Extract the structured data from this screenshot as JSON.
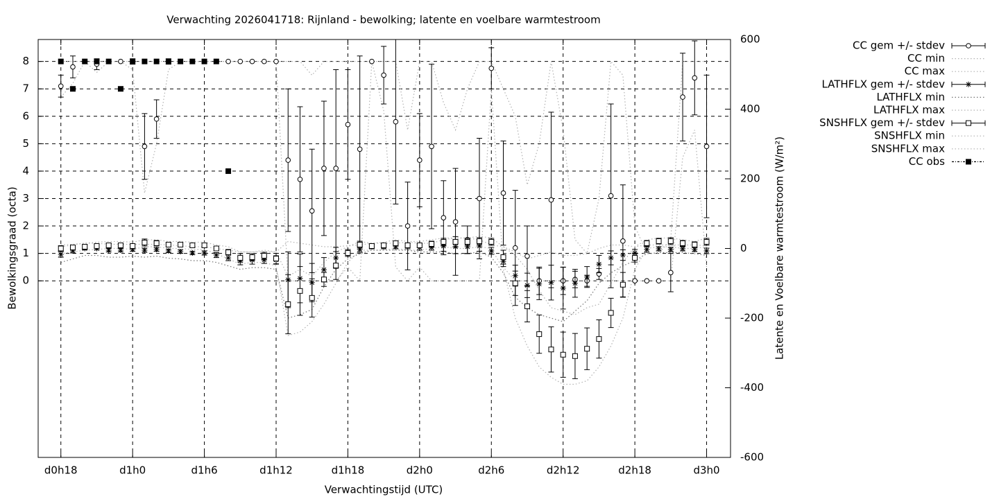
{
  "chart_data": {
    "type": "line",
    "title": "Verwachting 2026041718: Rijnland - bewolking; latente en voelbare warmtestroom",
    "x_label": "Verwachtingstijd (UTC)",
    "y_label": "Bewolkingsgraad (octa)",
    "y2_label": "Latente en Voelbare warmtestroom (W/m²)",
    "grid": true,
    "legend": "outside-right",
    "x": [
      18,
      19,
      20,
      21,
      22,
      23,
      24,
      25,
      26,
      27,
      28,
      29,
      30,
      31,
      32,
      33,
      34,
      35,
      36,
      37,
      38,
      39,
      40,
      41,
      42,
      43,
      44,
      45,
      46,
      47,
      48,
      49,
      50,
      51,
      52,
      53,
      54,
      55,
      56,
      57,
      58,
      59,
      60,
      61,
      62,
      63,
      64,
      65,
      66,
      67,
      68,
      69,
      70,
      71,
      72
    ],
    "xlim": [
      16.1,
      74
    ],
    "xticks": [
      {
        "value": 18,
        "label": "d0h18"
      },
      {
        "value": 24,
        "label": "d1h0"
      },
      {
        "value": 30,
        "label": "d1h6"
      },
      {
        "value": 36,
        "label": "d1h12"
      },
      {
        "value": 42,
        "label": "d1h18"
      },
      {
        "value": 48,
        "label": "d2h0"
      },
      {
        "value": 54,
        "label": "d2h6"
      },
      {
        "value": 60,
        "label": "d2h12"
      },
      {
        "value": 66,
        "label": "d2h18"
      },
      {
        "value": 72,
        "label": "d3h0"
      }
    ],
    "ylim": [
      -6.44,
      8.8
    ],
    "yticks": [
      0,
      1,
      2,
      3,
      4,
      5,
      6,
      7,
      8
    ],
    "y2lim": [
      -600,
      600
    ],
    "y2ticks": [
      -600,
      -400,
      -200,
      0,
      200,
      400,
      600
    ],
    "series": [
      {
        "name": "CC gem +/- stdev",
        "color": "#000000",
        "marker": "circle",
        "line": "none",
        "values": [
          7.1,
          7.8,
          8,
          7.9,
          8,
          8,
          8,
          4.9,
          5.9,
          8,
          8,
          8,
          8,
          8,
          8,
          8,
          8,
          8,
          8,
          4.4,
          3.7,
          2.55,
          4.1,
          4.1,
          5.7,
          4.8,
          8,
          7.5,
          5.8,
          2.0,
          4.4,
          4.9,
          2.3,
          2.15,
          1.5,
          3.0,
          7.75,
          3.2,
          1.2,
          0.9,
          0,
          2.95,
          0,
          0.05,
          0,
          0.25,
          3.1,
          1.45,
          0,
          0,
          0,
          0.3,
          6.7,
          7.4,
          4.9
        ],
        "errors": [
          0.4,
          0.4,
          0,
          0.2,
          0,
          0,
          0.1,
          1.2,
          0.7,
          0.1,
          0,
          0,
          0,
          0,
          0,
          0,
          0,
          0,
          0,
          2.6,
          2.65,
          2.25,
          2.45,
          3.6,
          2.0,
          3.4,
          0,
          1.05,
          3.0,
          1.6,
          1.7,
          3.0,
          1.35,
          1.95,
          0.5,
          2.2,
          0.75,
          1.9,
          2.1,
          1.1,
          0.5,
          3.2,
          0.5,
          0.3,
          0.2,
          0.2,
          3.35,
          2.05,
          0,
          0,
          0,
          0.7,
          1.6,
          1.35,
          2.6
        ]
      },
      {
        "name": "CC min",
        "color": "#b0b0b0",
        "marker": "none",
        "line": "dotted",
        "values": [
          6.7,
          7.2,
          8,
          7.6,
          8,
          8,
          7.7,
          3.2,
          5.0,
          7.7,
          8,
          8,
          8,
          8,
          8,
          8,
          8,
          8,
          8,
          0,
          0,
          0,
          0,
          0,
          0.5,
          0,
          8,
          6.2,
          0.5,
          0,
          0.5,
          0,
          0,
          0,
          0,
          0,
          7.0,
          0.5,
          0,
          0,
          0,
          0,
          0,
          0,
          0,
          0,
          0,
          0,
          0,
          0,
          0,
          0,
          4.5,
          5.5,
          0.5
        ]
      },
      {
        "name": "CC max",
        "color": "#b0b0b0",
        "marker": "none",
        "line": "dotted",
        "values": [
          8,
          8,
          8,
          8,
          8,
          8,
          8,
          8,
          8,
          8,
          8,
          8,
          8,
          8,
          8,
          8,
          8,
          8,
          8,
          8,
          8,
          7.5,
          8,
          8,
          8,
          8,
          8,
          8,
          8,
          5.5,
          8,
          8,
          6.5,
          5.5,
          7.0,
          8,
          8,
          7.0,
          6.0,
          3.5,
          5.0,
          8,
          5.5,
          1.5,
          1.0,
          3.0,
          8,
          7.5,
          2.0,
          1.0,
          1.0,
          1.5,
          8,
          8,
          8
        ]
      },
      {
        "name": "LATHFLX gem +/- stdev",
        "color": "#000000",
        "marker": "star",
        "line": "none",
        "axis": "y2",
        "values": [
          -17,
          -7,
          0,
          0,
          -5,
          -5,
          -3,
          -5,
          -3,
          -7,
          -9,
          -13,
          -13,
          -19,
          -27,
          -35,
          -33,
          -33,
          -33,
          -90,
          -86,
          -98,
          -61,
          -27,
          -13,
          -3,
          5,
          5,
          5,
          7,
          3,
          3,
          7,
          5,
          5,
          7,
          -7,
          -37,
          -78,
          -106,
          -102,
          -98,
          -114,
          -100,
          -82,
          -45,
          -27,
          -19,
          -13,
          -3,
          -1,
          -3,
          -1,
          -3,
          -7
        ],
        "errors": [
          8,
          6,
          4,
          4,
          5,
          5,
          5,
          6,
          5,
          5,
          5,
          5,
          6,
          7,
          8,
          12,
          12,
          10,
          12,
          80,
          70,
          55,
          35,
          30,
          10,
          8,
          6,
          6,
          6,
          8,
          8,
          8,
          15,
          20,
          20,
          15,
          10,
          15,
          30,
          35,
          45,
          50,
          60,
          40,
          30,
          25,
          20,
          15,
          10,
          8,
          6,
          6,
          6,
          6,
          8
        ]
      },
      {
        "name": "LATHFLX min",
        "color": "#707070",
        "marker": "none",
        "line": "dotted",
        "axis": "y2",
        "values": [
          -40,
          -30,
          -20,
          -20,
          -25,
          -25,
          -22,
          -25,
          -22,
          -28,
          -30,
          -35,
          -35,
          -40,
          -50,
          -60,
          -55,
          -55,
          -60,
          -200,
          -190,
          -175,
          -110,
          -60,
          -30,
          -15,
          -5,
          -5,
          -5,
          -5,
          -10,
          -10,
          -10,
          -15,
          -15,
          -10,
          -25,
          -70,
          -140,
          -170,
          -190,
          -200,
          -210,
          -180,
          -150,
          -100,
          -70,
          -50,
          -35,
          -15,
          -12,
          -12,
          -12,
          -15,
          -20
        ]
      },
      {
        "name": "LATHFLX max",
        "color": "#b0b0b0",
        "marker": "none",
        "line": "dotted",
        "axis": "y2",
        "values": [
          5,
          10,
          15,
          15,
          12,
          12,
          12,
          12,
          12,
          10,
          8,
          5,
          5,
          0,
          -5,
          -10,
          -10,
          -10,
          -10,
          20,
          15,
          10,
          5,
          5,
          8,
          10,
          15,
          15,
          15,
          18,
          15,
          15,
          25,
          30,
          30,
          25,
          10,
          5,
          -10,
          -30,
          -20,
          -10,
          -20,
          -20,
          -15,
          0,
          10,
          10,
          5,
          10,
          10,
          10,
          10,
          10,
          8
        ]
      },
      {
        "name": "SNSHFLX gem +/- stdev",
        "color": "#000000",
        "marker": "square",
        "line": "none",
        "axis": "y2",
        "values": [
          0,
          3,
          5,
          7,
          9,
          9,
          7,
          17,
          15,
          11,
          11,
          9,
          9,
          0,
          -11,
          -27,
          -25,
          -21,
          -29,
          -160,
          -122,
          -142,
          -89,
          -49,
          -13,
          11,
          7,
          9,
          15,
          9,
          9,
          13,
          19,
          19,
          19,
          21,
          19,
          -25,
          -100,
          -166,
          -246,
          -290,
          -305,
          -309,
          -288,
          -260,
          -185,
          -104,
          -27,
          15,
          21,
          21,
          15,
          11,
          19
        ],
        "errors": [
          8,
          6,
          5,
          5,
          5,
          5,
          6,
          10,
          8,
          6,
          6,
          6,
          6,
          6,
          8,
          12,
          10,
          10,
          15,
          85,
          70,
          55,
          20,
          40,
          10,
          10,
          6,
          6,
          6,
          6,
          6,
          8,
          10,
          15,
          10,
          10,
          10,
          20,
          35,
          45,
          55,
          65,
          65,
          65,
          60,
          55,
          42,
          35,
          12,
          8,
          8,
          10,
          8,
          8,
          10
        ]
      },
      {
        "name": "SNSHFLX min",
        "color": "#b0b0b0",
        "marker": "none",
        "line": "dotted",
        "axis": "y2",
        "values": [
          -15,
          -10,
          -5,
          -3,
          0,
          0,
          -3,
          5,
          5,
          0,
          0,
          -3,
          -3,
          -15,
          -30,
          -45,
          -40,
          -40,
          -50,
          -250,
          -240,
          -210,
          -160,
          -100,
          -40,
          -5,
          -5,
          -5,
          0,
          -5,
          -5,
          0,
          5,
          0,
          0,
          5,
          0,
          -60,
          -200,
          -280,
          -340,
          -370,
          -390,
          -390,
          -380,
          -340,
          -280,
          -200,
          -60,
          0,
          5,
          5,
          0,
          0,
          5
        ]
      },
      {
        "name": "SNSHFLX max",
        "color": "#b0b0b0",
        "marker": "none",
        "line": "dotted",
        "axis": "y2",
        "values": [
          10,
          12,
          15,
          18,
          20,
          20,
          18,
          25,
          25,
          20,
          20,
          18,
          18,
          10,
          5,
          -10,
          -10,
          -5,
          -10,
          -80,
          -60,
          -80,
          -40,
          -10,
          5,
          20,
          15,
          18,
          25,
          20,
          20,
          25,
          30,
          30,
          30,
          35,
          30,
          5,
          -20,
          -60,
          -120,
          -170,
          -180,
          -190,
          -170,
          -160,
          -100,
          -40,
          5,
          25,
          30,
          30,
          25,
          20,
          30
        ]
      },
      {
        "name": "CC obs",
        "color": "#000000",
        "marker": "filled-square",
        "line": "none",
        "values": [
          8,
          7,
          8,
          8,
          8,
          7,
          8,
          8,
          8,
          8,
          8,
          8,
          8,
          8,
          4,
          null,
          null,
          null,
          null,
          null,
          null,
          null,
          null,
          null,
          null,
          null,
          null,
          null,
          null,
          null,
          null,
          null,
          null,
          null,
          null,
          null,
          null,
          null,
          null,
          null,
          null,
          null,
          null,
          null,
          null,
          null,
          null,
          null,
          null,
          null,
          null,
          null,
          null,
          null,
          null
        ]
      }
    ]
  }
}
